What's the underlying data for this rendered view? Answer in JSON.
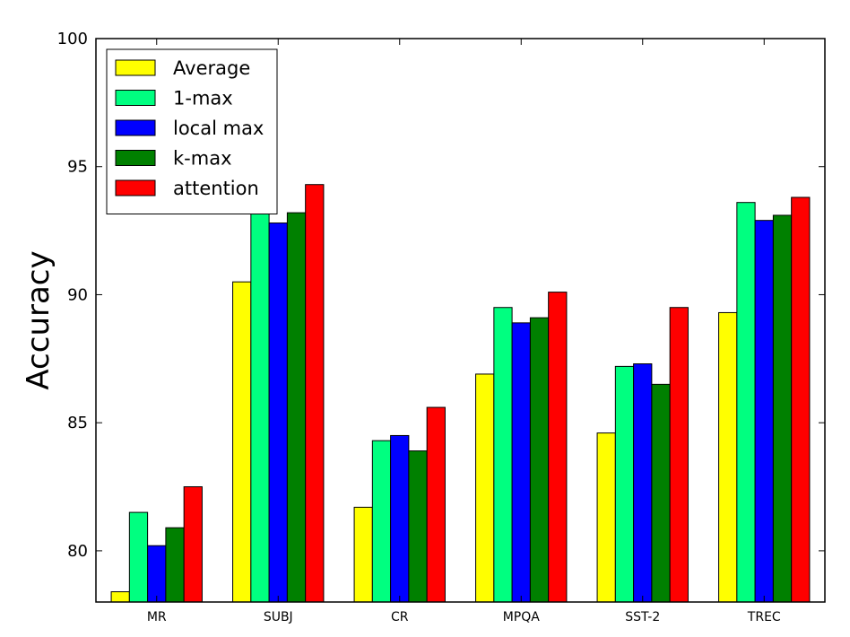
{
  "chart_data": {
    "type": "bar",
    "title": "",
    "xlabel": "",
    "ylabel": "Accuracy",
    "ylim": [
      78,
      100
    ],
    "yticks": [
      80,
      85,
      90,
      95,
      100
    ],
    "legend_position": "top-left",
    "categories": [
      "MR",
      "SUBJ",
      "CR",
      "MPQA",
      "SST-2",
      "TREC"
    ],
    "series": [
      {
        "name": "Average",
        "color": "#ffff00",
        "values": [
          78.4,
          90.5,
          81.7,
          86.9,
          84.6,
          89.3
        ]
      },
      {
        "name": "1-max",
        "color": "#00ff80",
        "values": [
          81.5,
          93.4,
          84.3,
          89.5,
          87.2,
          93.6
        ]
      },
      {
        "name": "local max",
        "color": "#0000ff",
        "values": [
          80.2,
          92.8,
          84.5,
          88.9,
          87.3,
          92.9
        ]
      },
      {
        "name": "k-max",
        "color": "#008000",
        "values": [
          80.9,
          93.2,
          83.9,
          89.1,
          86.5,
          93.1
        ]
      },
      {
        "name": "attention",
        "color": "#ff0000",
        "values": [
          82.5,
          94.3,
          85.6,
          90.1,
          89.5,
          93.8
        ]
      }
    ]
  }
}
